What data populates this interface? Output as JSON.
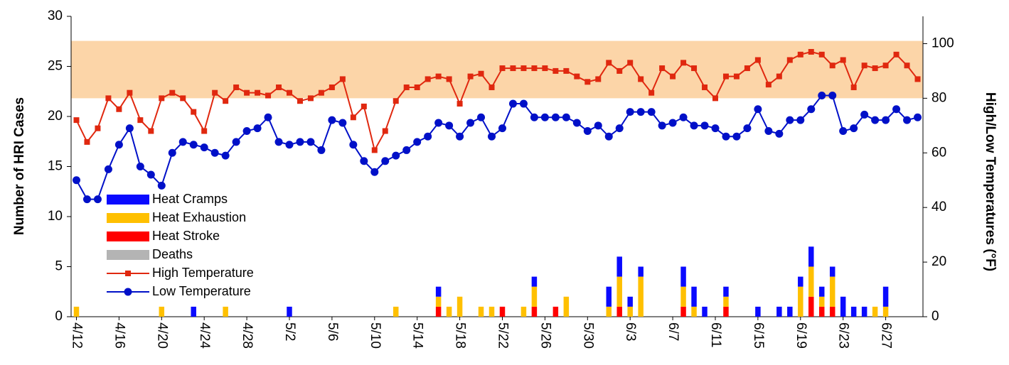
{
  "chart_data": {
    "type": "bar",
    "y_label": "Number of  HRI  Cases",
    "y2_label": "High/Low Temperatures (°F)",
    "categories": [
      "4/12",
      null,
      null,
      null,
      "4/16",
      null,
      null,
      null,
      "4/20",
      null,
      null,
      null,
      "4/24",
      null,
      null,
      null,
      "4/28",
      null,
      null,
      null,
      "5/2",
      null,
      null,
      null,
      "5/6",
      null,
      null,
      null,
      "5/10",
      null,
      null,
      null,
      "5/14",
      null,
      null,
      null,
      "5/18",
      null,
      null,
      null,
      "5/22",
      null,
      null,
      null,
      "5/26",
      null,
      null,
      null,
      "5/30",
      null,
      null,
      null,
      "6/3",
      null,
      null,
      null,
      "6/7",
      null,
      null,
      null,
      "6/11",
      null,
      null,
      null,
      "6/15",
      null,
      null,
      null,
      "6/19",
      null,
      null,
      null,
      "6/23",
      null,
      null,
      null,
      "6/27",
      null,
      null,
      null
    ],
    "ylim": [
      0,
      30
    ],
    "yticks": [
      0,
      5,
      10,
      15,
      20,
      25,
      30
    ],
    "y2lim": [
      0,
      110
    ],
    "y2ticks": [
      0,
      20,
      40,
      60,
      80,
      100
    ],
    "y2band": {
      "range": [
        80,
        101
      ],
      "color": "#fcd5a8"
    },
    "stacked": true,
    "series": [
      {
        "name": "Heat Cramps",
        "type": "bar",
        "color": "#0a0aff",
        "values": [
          0,
          0,
          0,
          0,
          0,
          0,
          0,
          0,
          0,
          0,
          0,
          1,
          0,
          0,
          0,
          0,
          0,
          0,
          0,
          0,
          1,
          0,
          0,
          0,
          0,
          0,
          0,
          0,
          0,
          0,
          0,
          0,
          0,
          0,
          1,
          0,
          0,
          0,
          0,
          0,
          0,
          0,
          0,
          1,
          0,
          0,
          0,
          0,
          0,
          0,
          2,
          2,
          1,
          1,
          0,
          0,
          0,
          2,
          2,
          1,
          0,
          1,
          0,
          0,
          1,
          0,
          1,
          1,
          1,
          2,
          1,
          1,
          2,
          1,
          1,
          0,
          2,
          0,
          0,
          0
        ]
      },
      {
        "name": "Heat Exhaustion",
        "type": "bar",
        "color": "#ffc000",
        "values": [
          1,
          0,
          0,
          0,
          0,
          0,
          0,
          0,
          1,
          0,
          0,
          0,
          0,
          0,
          1,
          0,
          0,
          0,
          0,
          0,
          0,
          0,
          0,
          0,
          0,
          0,
          0,
          0,
          0,
          0,
          1,
          0,
          0,
          0,
          1,
          1,
          2,
          0,
          1,
          1,
          0,
          0,
          1,
          2,
          0,
          0,
          2,
          0,
          0,
          0,
          1,
          3,
          1,
          4,
          0,
          0,
          0,
          2,
          1,
          0,
          0,
          1,
          0,
          0,
          0,
          0,
          0,
          0,
          3,
          3,
          1,
          3,
          0,
          0,
          0,
          1,
          1,
          0,
          0,
          0
        ]
      },
      {
        "name": "Heat Stroke",
        "type": "bar",
        "color": "#ff0000",
        "values": [
          0,
          0,
          0,
          0,
          0,
          0,
          0,
          0,
          0,
          0,
          0,
          0,
          0,
          0,
          0,
          0,
          0,
          0,
          0,
          0,
          0,
          0,
          0,
          0,
          0,
          0,
          0,
          0,
          0,
          0,
          0,
          0,
          0,
          0,
          1,
          0,
          0,
          0,
          0,
          0,
          1,
          0,
          0,
          1,
          0,
          1,
          0,
          0,
          0,
          0,
          0,
          1,
          0,
          0,
          0,
          0,
          0,
          1,
          0,
          0,
          0,
          1,
          0,
          0,
          0,
          0,
          0,
          0,
          0,
          2,
          1,
          1,
          0,
          0,
          0,
          0,
          0,
          0,
          0,
          0
        ]
      },
      {
        "name": "Deaths",
        "type": "bar",
        "color": "#b4b4b4",
        "values": [
          0,
          0,
          0,
          0,
          0,
          0,
          0,
          0,
          0,
          0,
          0,
          0,
          0,
          0,
          0,
          0,
          0,
          0,
          0,
          0,
          0,
          0,
          0,
          0,
          0,
          0,
          0,
          0,
          0,
          0,
          0,
          0,
          0,
          0,
          0,
          0,
          0,
          0,
          0,
          0,
          0,
          0,
          0,
          0,
          0,
          0,
          0,
          0,
          0,
          0,
          0,
          0,
          0,
          0,
          0,
          0,
          0,
          0,
          0,
          0,
          0,
          0,
          0,
          0,
          0,
          0,
          0,
          0,
          0,
          0,
          0,
          0,
          0,
          0,
          0,
          0,
          0,
          0,
          0,
          0
        ]
      },
      {
        "name": "High Temperature",
        "type": "line",
        "marker": "square",
        "axis": "y2",
        "color": "#e0280f",
        "values": [
          72,
          64,
          69,
          80,
          76,
          82,
          72,
          68,
          80,
          82,
          80,
          75,
          68,
          82,
          79,
          84,
          82,
          82,
          81,
          84,
          82,
          79,
          80,
          82,
          84,
          87,
          73,
          77,
          61,
          68,
          79,
          84,
          84,
          87,
          88,
          87,
          78,
          88,
          89,
          84,
          91,
          91,
          91,
          91,
          91,
          90,
          90,
          88,
          86,
          87,
          93,
          90,
          93,
          87,
          82,
          91,
          88,
          93,
          91,
          84,
          80,
          88,
          88,
          91,
          94,
          85,
          88,
          94,
          96,
          97,
          96,
          92,
          94,
          84,
          92,
          91,
          92,
          96,
          92,
          87
        ]
      },
      {
        "name": "Low Temperature",
        "type": "line",
        "marker": "circle",
        "axis": "y2",
        "color": "#0010c8",
        "values": [
          50,
          43,
          43,
          54,
          63,
          69,
          55,
          52,
          48,
          60,
          64,
          63,
          62,
          60,
          59,
          64,
          68,
          69,
          73,
          64,
          63,
          64,
          64,
          61,
          72,
          71,
          63,
          57,
          53,
          57,
          59,
          61,
          64,
          66,
          71,
          70,
          66,
          71,
          73,
          66,
          69,
          78,
          78,
          73,
          73,
          73,
          73,
          71,
          68,
          70,
          66,
          69,
          75,
          75,
          75,
          70,
          71,
          73,
          70,
          70,
          69,
          66,
          66,
          69,
          76,
          68,
          67,
          72,
          72,
          76,
          81,
          81,
          68,
          69,
          74,
          72,
          72,
          76,
          72,
          73
        ]
      }
    ]
  }
}
